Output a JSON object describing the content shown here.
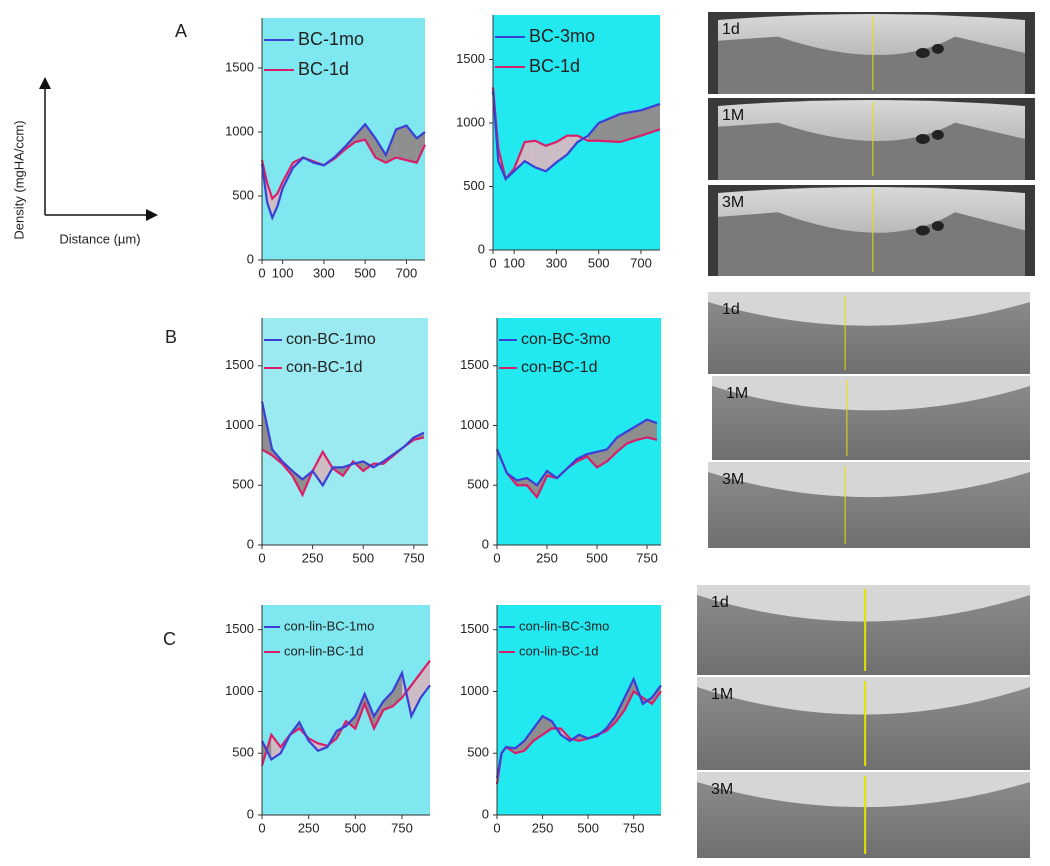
{
  "panel_labels": [
    "A",
    "B",
    "C"
  ],
  "axis_key": {
    "y_label": "Density (mgHA/ccm)",
    "x_label": "Distance (µm)"
  },
  "chart_data": [
    {
      "type": "line",
      "background": "#7fe7ef",
      "fill_colors": [
        "#8e8e8e",
        "#cdbcc4"
      ],
      "xlim": [
        0,
        790
      ],
      "ylim": [
        0,
        1890
      ],
      "xticks": [
        0,
        100,
        300,
        500,
        700
      ],
      "yticks": [
        0,
        500,
        1000,
        1500
      ],
      "x": [
        0,
        25,
        50,
        75,
        100,
        150,
        200,
        250,
        300,
        350,
        400,
        450,
        500,
        550,
        600,
        650,
        700,
        750,
        790
      ],
      "series": [
        {
          "name": "BC-1mo",
          "color": "#3b3fd6",
          "values": [
            750,
            450,
            330,
            420,
            560,
            720,
            800,
            760,
            740,
            800,
            880,
            970,
            1060,
            950,
            820,
            1020,
            1050,
            950,
            1000
          ]
        },
        {
          "name": "BC-1d",
          "color": "#d8206a",
          "values": [
            780,
            600,
            480,
            520,
            610,
            760,
            800,
            770,
            740,
            790,
            860,
            920,
            940,
            800,
            760,
            800,
            780,
            760,
            900
          ]
        }
      ]
    },
    {
      "type": "line",
      "background": "#22e8f0",
      "fill_colors": [
        "#8e8e8e",
        "#cdbcc4"
      ],
      "xlim": [
        0,
        790
      ],
      "ylim": [
        0,
        1850
      ],
      "xticks": [
        0,
        100,
        300,
        500,
        700
      ],
      "yticks": [
        0,
        500,
        1000,
        1500
      ],
      "x": [
        0,
        25,
        60,
        100,
        150,
        200,
        250,
        300,
        350,
        400,
        450,
        500,
        600,
        700,
        790
      ],
      "series": [
        {
          "name": "BC-3mo",
          "color": "#3b3fd6",
          "values": [
            1250,
            700,
            560,
            620,
            700,
            650,
            620,
            690,
            750,
            850,
            900,
            1000,
            1070,
            1100,
            1150
          ]
        },
        {
          "name": "BC-1d",
          "color": "#d8206a",
          "values": [
            1280,
            800,
            560,
            640,
            850,
            860,
            820,
            850,
            900,
            900,
            860,
            860,
            850,
            900,
            950
          ]
        }
      ]
    },
    {
      "type": "line",
      "background": "#9beaf2",
      "fill_colors": [
        "#8e8e8e",
        "#cdbcc4"
      ],
      "xlim": [
        0,
        820
      ],
      "ylim": [
        0,
        1900
      ],
      "xticks": [
        0,
        250,
        500,
        750
      ],
      "yticks": [
        0,
        500,
        1000,
        1500
      ],
      "x": [
        0,
        50,
        100,
        150,
        200,
        250,
        300,
        350,
        400,
        450,
        500,
        550,
        600,
        650,
        700,
        750,
        800
      ],
      "series": [
        {
          "name": "con-BC-1mo",
          "color": "#3b3fd6",
          "values": [
            1200,
            800,
            700,
            620,
            550,
            620,
            500,
            650,
            650,
            680,
            700,
            650,
            700,
            760,
            820,
            900,
            940
          ]
        },
        {
          "name": "con-BC-1d",
          "color": "#d8206a",
          "values": [
            800,
            750,
            680,
            580,
            420,
            620,
            780,
            640,
            580,
            700,
            620,
            680,
            680,
            750,
            820,
            880,
            900
          ]
        }
      ]
    },
    {
      "type": "line",
      "background": "#22e8f0",
      "fill_colors": [
        "#8e8e8e",
        "#cdbcc4"
      ],
      "xlim": [
        0,
        820
      ],
      "ylim": [
        0,
        1900
      ],
      "xticks": [
        0,
        250,
        500,
        750
      ],
      "yticks": [
        0,
        500,
        1000,
        1500
      ],
      "x": [
        0,
        50,
        100,
        150,
        200,
        250,
        300,
        350,
        400,
        450,
        500,
        550,
        600,
        650,
        700,
        750,
        800
      ],
      "series": [
        {
          "name": "con-BC-3mo",
          "color": "#3b3fd6",
          "values": [
            800,
            600,
            540,
            560,
            500,
            620,
            560,
            640,
            720,
            760,
            780,
            800,
            900,
            950,
            1000,
            1050,
            1020
          ]
        },
        {
          "name": "con-BC-1d",
          "color": "#d8206a",
          "values": [
            800,
            600,
            500,
            500,
            400,
            580,
            560,
            640,
            700,
            740,
            650,
            700,
            780,
            850,
            880,
            900,
            880
          ]
        }
      ]
    },
    {
      "type": "line",
      "background": "#7fe7ef",
      "fill_colors": [
        "#8e8e8e",
        "#cdbcc4"
      ],
      "xlim": [
        0,
        900
      ],
      "ylim": [
        0,
        1700
      ],
      "xticks": [
        0,
        250,
        500,
        750
      ],
      "yticks": [
        0,
        500,
        1000,
        1500
      ],
      "x": [
        0,
        50,
        100,
        150,
        200,
        250,
        300,
        350,
        400,
        450,
        500,
        550,
        600,
        650,
        700,
        750,
        800,
        850,
        900
      ],
      "series": [
        {
          "name": "con-lin-BC-1mo",
          "color": "#3b3fd6",
          "values": [
            600,
            450,
            500,
            650,
            750,
            600,
            520,
            550,
            680,
            720,
            800,
            980,
            800,
            920,
            1000,
            1150,
            800,
            950,
            1050
          ]
        },
        {
          "name": "con-lin-BC-1d",
          "color": "#d8206a",
          "values": [
            400,
            650,
            550,
            650,
            700,
            620,
            580,
            560,
            620,
            760,
            700,
            900,
            700,
            850,
            880,
            950,
            1050,
            1150,
            1250
          ]
        }
      ]
    },
    {
      "type": "line",
      "background": "#22e8f0",
      "fill_colors": [
        "#8e8e8e",
        "#cdbcc4"
      ],
      "xlim": [
        0,
        900
      ],
      "ylim": [
        0,
        1700
      ],
      "xticks": [
        0,
        250,
        500,
        750
      ],
      "yticks": [
        0,
        500,
        1000,
        1500
      ],
      "x": [
        0,
        25,
        50,
        100,
        150,
        200,
        250,
        300,
        350,
        400,
        450,
        500,
        550,
        600,
        650,
        700,
        750,
        800,
        850,
        900
      ],
      "series": [
        {
          "name": "con-lin-BC-3mo",
          "color": "#3b3fd6",
          "values": [
            300,
            500,
            550,
            540,
            600,
            700,
            800,
            760,
            650,
            600,
            650,
            620,
            640,
            700,
            800,
            950,
            1100,
            900,
            950,
            1050
          ]
        },
        {
          "name": "con-lin-BC-1d",
          "color": "#d8206a",
          "values": [
            250,
            500,
            550,
            500,
            520,
            600,
            650,
            700,
            700,
            620,
            600,
            620,
            650,
            680,
            750,
            850,
            1000,
            950,
            900,
            1000
          ]
        }
      ]
    }
  ],
  "images": [
    {
      "labels": [
        "1d",
        "1M",
        "3M"
      ]
    },
    {
      "labels": [
        "1d",
        "1M",
        "3M"
      ]
    },
    {
      "labels": [
        "1d",
        "1M",
        "3M"
      ]
    }
  ]
}
